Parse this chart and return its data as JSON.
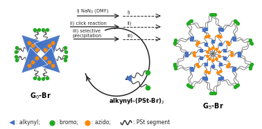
{
  "bg_color": "#ffffff",
  "blue_color": "#4472c4",
  "green_color": "#22aa22",
  "orange_color": "#ff8800",
  "arrow_color": "#222222",
  "text_color": "#000000",
  "g0_label": "G$_0$-Br",
  "g5_label": "G$_5$-Br",
  "alkynyl_label": "alkynyl-(PSt-Br)$_2$",
  "step1": "i) NaN$_3$ (DMF)",
  "step2": "ii) click reaction",
  "step3": "iii) selective\nprecipitation",
  "roman1": "i)",
  "roman2": "ii)",
  "roman3": "iii)"
}
